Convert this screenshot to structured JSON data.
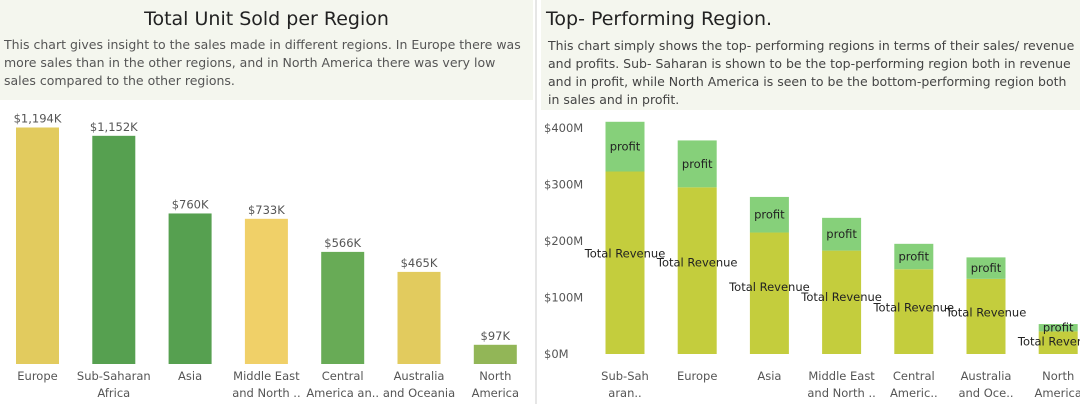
{
  "left": {
    "title": "Total Unit Sold per Region",
    "description": "This chart gives insight to  the sales made in different regions. In  Europe there was more sales than in the other regions, and in North America there was very low sales compared to the other regions."
  },
  "right": {
    "title": "Top- Performing Region.",
    "description": "This chart simply shows the top- performing regions in terms of their sales/ revenue and profits. Sub- Saharan is shown to be the top-performing region both in revenue and in profit, while North America is seen to be the bottom-performing region both in sales and in profit."
  },
  "chart_data": [
    {
      "type": "bar",
      "title": "Total Unit Sold per Region",
      "categories": [
        "Europe",
        "Sub-Saharan Africa",
        "Asia",
        "Middle East and North ..",
        "Central America an..",
        "Australia and Oceania",
        "North America"
      ],
      "category_labels": [
        [
          "Europe"
        ],
        [
          "Sub-Saharan",
          "Africa"
        ],
        [
          "Asia"
        ],
        [
          "Middle East",
          "and North .."
        ],
        [
          "Central",
          "America an.."
        ],
        [
          "Australia",
          "and Oceania"
        ],
        [
          "North",
          "America"
        ]
      ],
      "values": [
        1194,
        1152,
        760,
        733,
        566,
        465,
        97
      ],
      "value_labels": [
        "$1,194K",
        "$1,152K",
        "$760K",
        "$733K",
        "$566K",
        "$465K",
        "$97K"
      ],
      "colors": [
        "#e2cb5e",
        "#56a050",
        "#56a050",
        "#f0d068",
        "#68ab56",
        "#e2cb5e",
        "#92b657"
      ],
      "ylim": [
        0,
        1300
      ],
      "grid": false
    },
    {
      "type": "bar",
      "stacked": true,
      "title": "Top- Performing Region.",
      "categories": [
        "Sub-Saharan..",
        "Europe",
        "Asia",
        "Middle East and North ..",
        "Central Americ..",
        "Australia and Oce..",
        "North America"
      ],
      "category_labels": [
        [
          "Sub-Sah",
          "aran.."
        ],
        [
          "Europe"
        ],
        [
          "Asia"
        ],
        [
          "Middle East",
          "and North .."
        ],
        [
          "Central",
          "Americ.."
        ],
        [
          "Australia",
          "and Oce.."
        ],
        [
          "North",
          "America"
        ]
      ],
      "series": [
        {
          "name": "Total Revenue",
          "values": [
            323,
            295,
            215,
            183,
            150,
            133,
            40
          ],
          "color": "#c4cd3d"
        },
        {
          "name": "profit",
          "values": [
            88,
            83,
            63,
            58,
            45,
            38,
            13
          ],
          "color": "#86d07a"
        }
      ],
      "yticks": [
        "$0M",
        "$100M",
        "$200M",
        "$300M",
        "$400M"
      ],
      "ytick_values": [
        0,
        100,
        200,
        300,
        400
      ],
      "ylim": [
        0,
        425
      ],
      "grid": false
    }
  ]
}
